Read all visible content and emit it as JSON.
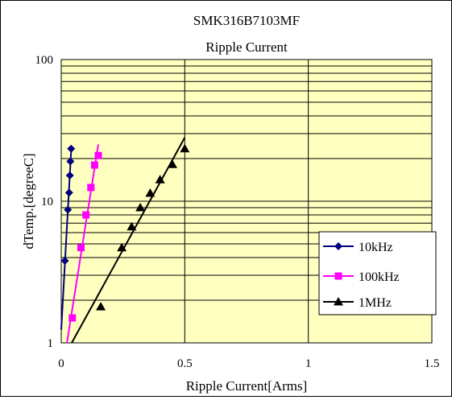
{
  "chart_data": {
    "type": "line",
    "title": "SMK316B7103MF",
    "subtitle": "Ripple Current",
    "xlabel": "Ripple Current[Arms]",
    "ylabel": "dTemp.[degreeC]",
    "xlim": [
      0,
      1.5
    ],
    "ylim": [
      1,
      100
    ],
    "y_scale": "log",
    "x_ticks": [
      "0",
      "0.5",
      "1",
      "1.5"
    ],
    "y_ticks": [
      "1",
      "10",
      "100"
    ],
    "grid": true,
    "legend_position": "right",
    "colors": {
      "plot_background": "#FFFFC0",
      "10kHz": "#000080",
      "100kHz": "#FF00FF",
      "1MHz": "#000000"
    },
    "series": [
      {
        "name": "10kHz",
        "marker": "diamond",
        "x": [
          0.015,
          0.027,
          0.032,
          0.035,
          0.037,
          0.04
        ],
        "y": [
          3.8,
          8.7,
          11.5,
          15.2,
          19.1,
          23.5
        ]
      },
      {
        "name": "100kHz",
        "marker": "square",
        "x": [
          0.045,
          0.08,
          0.1,
          0.12,
          0.135,
          0.15
        ],
        "y": [
          1.5,
          4.7,
          8.0,
          12.5,
          18.0,
          21.0
        ]
      },
      {
        "name": "1MHz",
        "marker": "triangle",
        "x": [
          0.16,
          0.245,
          0.285,
          0.32,
          0.36,
          0.4,
          0.45,
          0.5
        ],
        "y": [
          1.8,
          4.7,
          6.6,
          9.0,
          11.4,
          14.2,
          18.2,
          23.5
        ]
      }
    ]
  }
}
